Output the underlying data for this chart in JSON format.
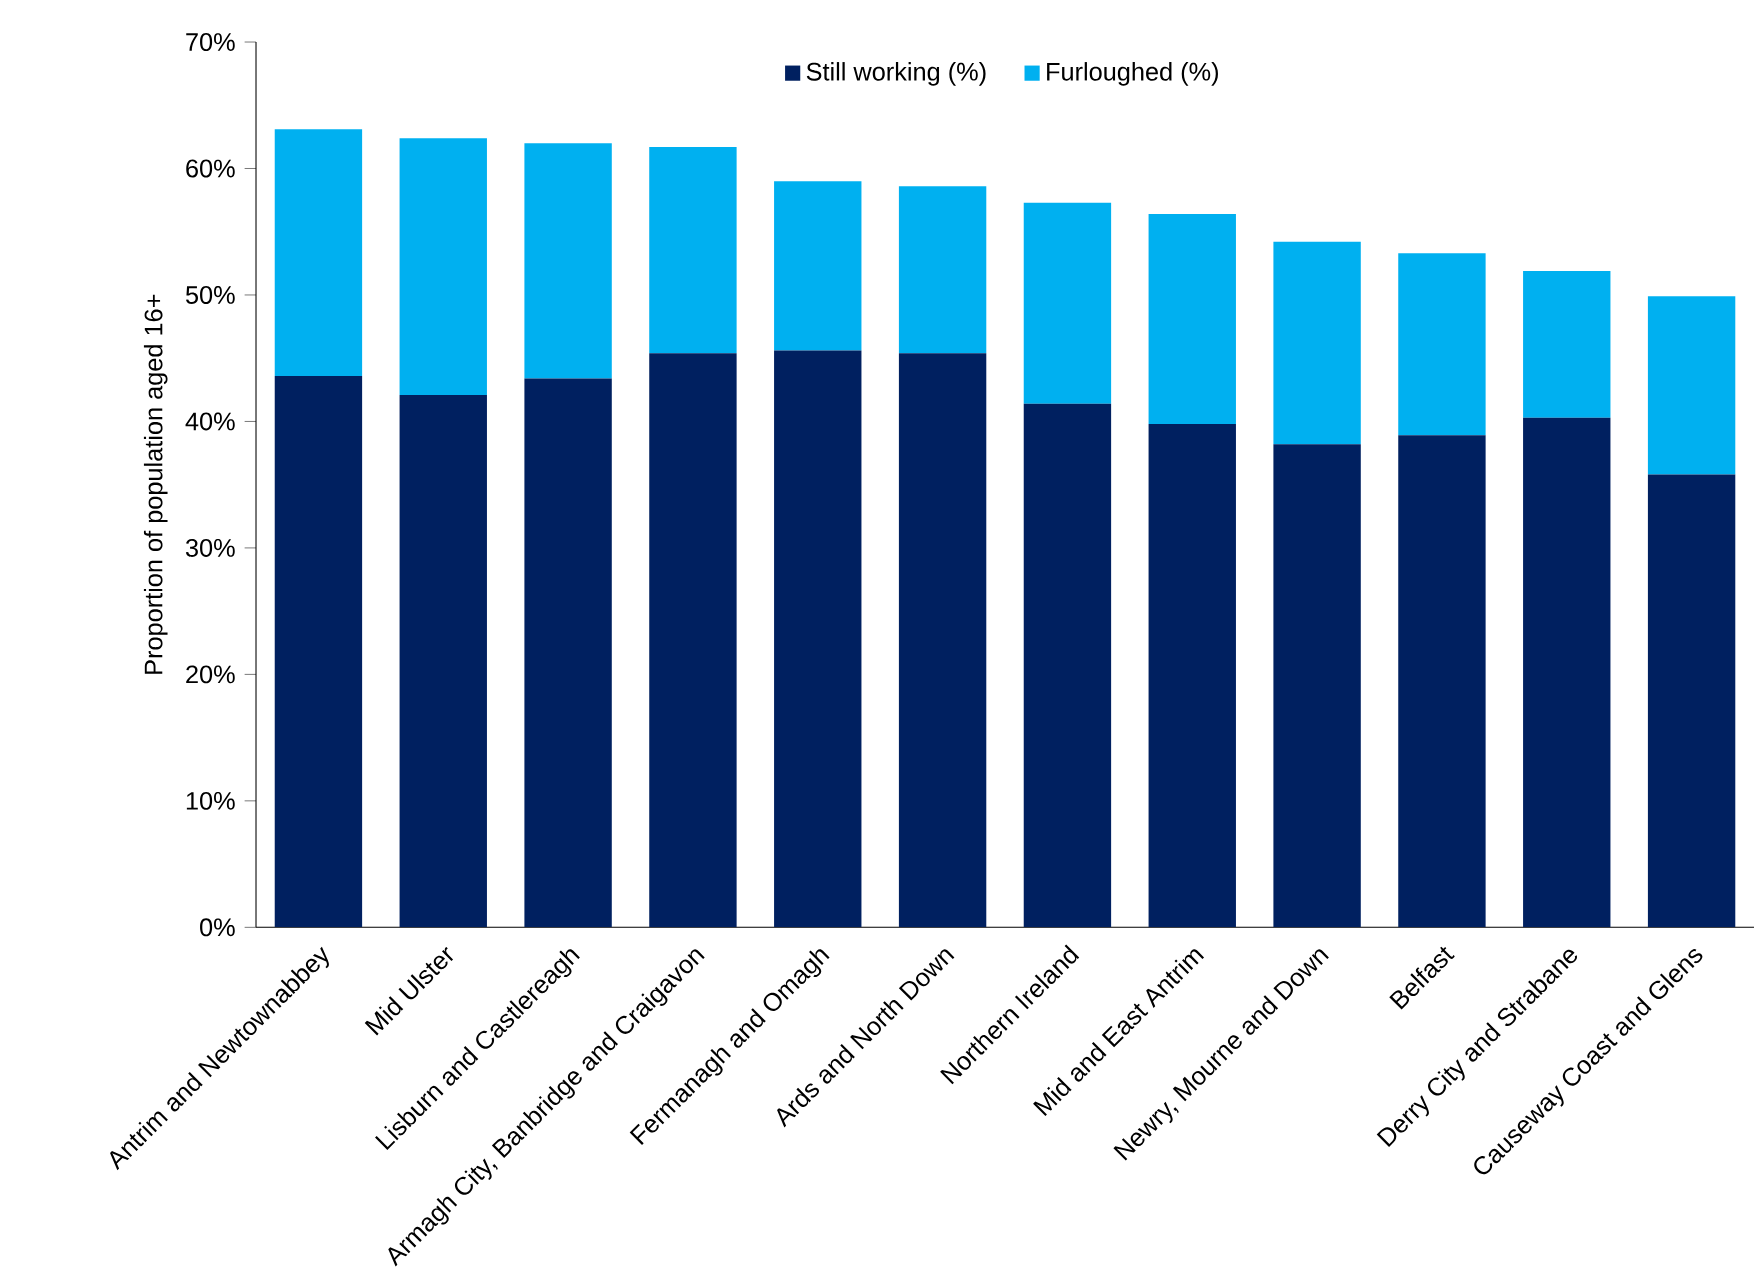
{
  "chart_data": {
    "type": "bar",
    "stacked": true,
    "ylabel": "Proportion of population aged 16+",
    "categories": [
      "Antrim and Newtownabbey",
      "Mid Ulster",
      "Lisburn and Castlereagh",
      "Armagh City, Banbridge and Craigavon",
      "Fermanagh and Omagh",
      "Ards and North Down",
      "Northern Ireland",
      "Mid and East Antrim",
      "Newry, Mourne and Down",
      "Belfast",
      "Derry City and Strabane",
      "Causeway Coast and Glens"
    ],
    "series": [
      {
        "name": "Still working (%)",
        "color": "#002060",
        "values": [
          43.6,
          42.1,
          43.4,
          45.4,
          45.6,
          45.4,
          41.4,
          39.8,
          38.2,
          38.9,
          40.3,
          35.8
        ]
      },
      {
        "name": "Furloughed (%)",
        "color": "#00b0f0",
        "values": [
          19.5,
          20.3,
          18.6,
          16.3,
          13.4,
          13.2,
          15.9,
          16.6,
          16.0,
          14.4,
          11.6,
          14.1
        ]
      }
    ],
    "ylim": [
      0,
      70
    ],
    "yticks": [
      {
        "value": 0,
        "label": "0%"
      },
      {
        "value": 10,
        "label": "10%"
      },
      {
        "value": 20,
        "label": "20%"
      },
      {
        "value": 30,
        "label": "30%"
      },
      {
        "value": 40,
        "label": "40%"
      },
      {
        "value": 50,
        "label": "50%"
      },
      {
        "value": 60,
        "label": "60%"
      },
      {
        "value": 70,
        "label": "70%"
      }
    ],
    "legend": "top",
    "grid": false
  }
}
